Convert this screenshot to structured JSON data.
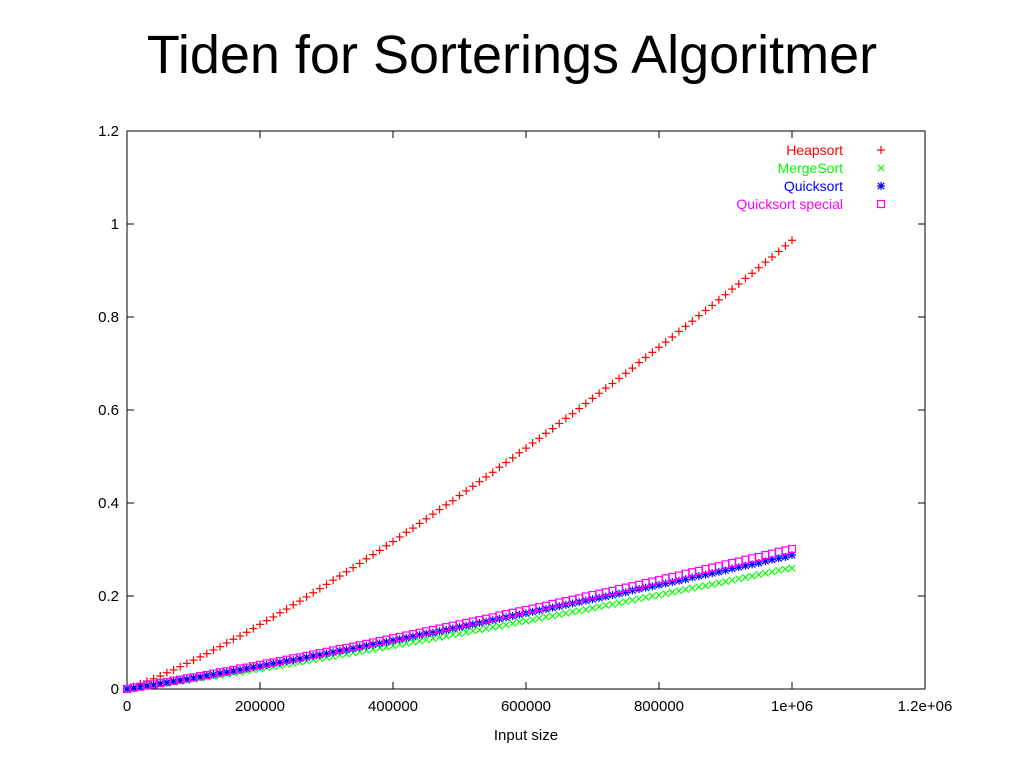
{
  "page": {
    "title": "Tiden for Sorterings Algoritmer"
  },
  "chart_data": {
    "type": "scatter",
    "title": "",
    "xlabel": "Input size",
    "ylabel": "",
    "xlim": [
      0,
      1200000
    ],
    "ylim": [
      0,
      1.2
    ],
    "x_ticks": [
      {
        "value": 0,
        "label": "0"
      },
      {
        "value": 200000,
        "label": "200000"
      },
      {
        "value": 400000,
        "label": "400000"
      },
      {
        "value": 600000,
        "label": "600000"
      },
      {
        "value": 800000,
        "label": "800000"
      },
      {
        "value": 1000000,
        "label": "1e+06"
      },
      {
        "value": 1200000,
        "label": "1.2e+06"
      }
    ],
    "y_ticks": [
      {
        "value": 0,
        "label": "0"
      },
      {
        "value": 0.2,
        "label": "0.2"
      },
      {
        "value": 0.4,
        "label": "0.4"
      },
      {
        "value": 0.6,
        "label": "0.6"
      },
      {
        "value": 0.8,
        "label": "0.8"
      },
      {
        "value": 1.0,
        "label": "1"
      },
      {
        "value": 1.2,
        "label": "1.2"
      }
    ],
    "grid": false,
    "legend": "top-right",
    "series": [
      {
        "name": "Heapsort",
        "marker": "plus",
        "color": "#ff0000",
        "x": [
          0,
          10000,
          20000,
          30000,
          40000,
          50000,
          60000,
          70000,
          80000,
          90000,
          100000,
          110000,
          120000,
          130000,
          140000,
          150000,
          160000,
          170000,
          180000,
          190000,
          200000,
          210000,
          220000,
          230000,
          240000,
          250000,
          260000,
          270000,
          280000,
          290000,
          300000,
          310000,
          320000,
          330000,
          340000,
          350000,
          360000,
          370000,
          380000,
          390000,
          400000,
          410000,
          420000,
          430000,
          440000,
          450000,
          460000,
          470000,
          480000,
          490000,
          500000,
          510000,
          520000,
          530000,
          540000,
          550000,
          560000,
          570000,
          580000,
          590000,
          600000,
          610000,
          620000,
          630000,
          640000,
          650000,
          660000,
          670000,
          680000,
          690000,
          700000,
          710000,
          720000,
          730000,
          740000,
          750000,
          760000,
          770000,
          780000,
          790000,
          800000,
          810000,
          820000,
          830000,
          840000,
          850000,
          860000,
          870000,
          880000,
          890000,
          900000,
          910000,
          920000,
          930000,
          940000,
          950000,
          960000,
          970000,
          980000,
          990000,
          1000000
        ],
        "y": [
          0.0,
          0.005,
          0.011,
          0.017,
          0.022,
          0.028,
          0.035,
          0.041,
          0.048,
          0.055,
          0.062,
          0.069,
          0.076,
          0.084,
          0.091,
          0.099,
          0.107,
          0.114,
          0.122,
          0.13,
          0.139,
          0.147,
          0.155,
          0.164,
          0.172,
          0.181,
          0.189,
          0.198,
          0.207,
          0.216,
          0.225,
          0.234,
          0.243,
          0.252,
          0.261,
          0.27,
          0.28,
          0.289,
          0.298,
          0.308,
          0.317,
          0.327,
          0.337,
          0.346,
          0.356,
          0.366,
          0.376,
          0.386,
          0.396,
          0.405,
          0.416,
          0.426,
          0.436,
          0.446,
          0.456,
          0.466,
          0.477,
          0.487,
          0.497,
          0.508,
          0.518,
          0.529,
          0.539,
          0.55,
          0.56,
          0.571,
          0.582,
          0.592,
          0.603,
          0.614,
          0.625,
          0.636,
          0.647,
          0.657,
          0.668,
          0.679,
          0.69,
          0.702,
          0.713,
          0.724,
          0.735,
          0.746,
          0.757,
          0.769,
          0.78,
          0.791,
          0.803,
          0.814,
          0.825,
          0.837,
          0.848,
          0.86,
          0.871,
          0.883,
          0.894,
          0.906,
          0.918,
          0.929,
          0.941,
          0.953,
          0.965
        ]
      },
      {
        "name": "MergeSort",
        "marker": "cross",
        "color": "#00ff00",
        "x": [
          0,
          10000,
          20000,
          30000,
          40000,
          50000,
          60000,
          70000,
          80000,
          90000,
          100000,
          110000,
          120000,
          130000,
          140000,
          150000,
          160000,
          170000,
          180000,
          190000,
          200000,
          210000,
          220000,
          230000,
          240000,
          250000,
          260000,
          270000,
          280000,
          290000,
          300000,
          310000,
          320000,
          330000,
          340000,
          350000,
          360000,
          370000,
          380000,
          390000,
          400000,
          410000,
          420000,
          430000,
          440000,
          450000,
          460000,
          470000,
          480000,
          490000,
          500000,
          510000,
          520000,
          530000,
          540000,
          550000,
          560000,
          570000,
          580000,
          590000,
          600000,
          610000,
          620000,
          630000,
          640000,
          650000,
          660000,
          670000,
          680000,
          690000,
          700000,
          710000,
          720000,
          730000,
          740000,
          750000,
          760000,
          770000,
          780000,
          790000,
          800000,
          810000,
          820000,
          830000,
          840000,
          850000,
          860000,
          870000,
          880000,
          890000,
          900000,
          910000,
          920000,
          930000,
          940000,
          950000,
          960000,
          970000,
          980000,
          990000,
          1000000
        ],
        "y": [
          0.0,
          0.002,
          0.004,
          0.006,
          0.008,
          0.01,
          0.012,
          0.014,
          0.016,
          0.018,
          0.021,
          0.023,
          0.025,
          0.027,
          0.029,
          0.032,
          0.034,
          0.036,
          0.039,
          0.041,
          0.043,
          0.046,
          0.048,
          0.05,
          0.053,
          0.055,
          0.058,
          0.06,
          0.063,
          0.065,
          0.068,
          0.07,
          0.073,
          0.075,
          0.078,
          0.08,
          0.083,
          0.085,
          0.088,
          0.09,
          0.093,
          0.096,
          0.098,
          0.101,
          0.103,
          0.106,
          0.109,
          0.111,
          0.114,
          0.117,
          0.119,
          0.122,
          0.125,
          0.127,
          0.13,
          0.133,
          0.135,
          0.138,
          0.141,
          0.144,
          0.146,
          0.149,
          0.152,
          0.155,
          0.157,
          0.16,
          0.163,
          0.166,
          0.168,
          0.171,
          0.174,
          0.177,
          0.18,
          0.182,
          0.185,
          0.188,
          0.191,
          0.194,
          0.197,
          0.2,
          0.202,
          0.205,
          0.208,
          0.211,
          0.214,
          0.217,
          0.22,
          0.222,
          0.225,
          0.228,
          0.231,
          0.234,
          0.237,
          0.24,
          0.243,
          0.246,
          0.249,
          0.252,
          0.255,
          0.258,
          0.26
        ]
      },
      {
        "name": "Quicksort",
        "marker": "star",
        "color": "#0000ff",
        "x": [
          0,
          10000,
          20000,
          30000,
          40000,
          50000,
          60000,
          70000,
          80000,
          90000,
          100000,
          110000,
          120000,
          130000,
          140000,
          150000,
          160000,
          170000,
          180000,
          190000,
          200000,
          210000,
          220000,
          230000,
          240000,
          250000,
          260000,
          270000,
          280000,
          290000,
          300000,
          310000,
          320000,
          330000,
          340000,
          350000,
          360000,
          370000,
          380000,
          390000,
          400000,
          410000,
          420000,
          430000,
          440000,
          450000,
          460000,
          470000,
          480000,
          490000,
          500000,
          510000,
          520000,
          530000,
          540000,
          550000,
          560000,
          570000,
          580000,
          590000,
          600000,
          610000,
          620000,
          630000,
          640000,
          650000,
          660000,
          670000,
          680000,
          690000,
          700000,
          710000,
          720000,
          730000,
          740000,
          750000,
          760000,
          770000,
          780000,
          790000,
          800000,
          810000,
          820000,
          830000,
          840000,
          850000,
          860000,
          870000,
          880000,
          890000,
          900000,
          910000,
          920000,
          930000,
          940000,
          950000,
          960000,
          970000,
          980000,
          990000,
          1000000
        ],
        "y": [
          0.0,
          0.002,
          0.005,
          0.007,
          0.009,
          0.012,
          0.014,
          0.017,
          0.019,
          0.021,
          0.024,
          0.026,
          0.029,
          0.031,
          0.034,
          0.036,
          0.039,
          0.041,
          0.044,
          0.047,
          0.049,
          0.052,
          0.055,
          0.057,
          0.06,
          0.062,
          0.065,
          0.068,
          0.071,
          0.073,
          0.076,
          0.079,
          0.082,
          0.084,
          0.087,
          0.09,
          0.093,
          0.096,
          0.098,
          0.101,
          0.104,
          0.107,
          0.11,
          0.113,
          0.116,
          0.119,
          0.121,
          0.124,
          0.127,
          0.13,
          0.133,
          0.136,
          0.139,
          0.142,
          0.145,
          0.148,
          0.151,
          0.154,
          0.157,
          0.16,
          0.163,
          0.166,
          0.169,
          0.172,
          0.175,
          0.178,
          0.181,
          0.184,
          0.187,
          0.19,
          0.193,
          0.196,
          0.199,
          0.202,
          0.205,
          0.208,
          0.212,
          0.215,
          0.218,
          0.221,
          0.224,
          0.227,
          0.23,
          0.233,
          0.236,
          0.24,
          0.243,
          0.246,
          0.249,
          0.252,
          0.255,
          0.259,
          0.262,
          0.265,
          0.268,
          0.271,
          0.275,
          0.278,
          0.281,
          0.284,
          0.288
        ]
      },
      {
        "name": "Quicksort special",
        "marker": "square",
        "color": "#ff00ff",
        "x": [
          0,
          10000,
          20000,
          30000,
          40000,
          50000,
          60000,
          70000,
          80000,
          90000,
          100000,
          110000,
          120000,
          130000,
          140000,
          150000,
          160000,
          170000,
          180000,
          190000,
          200000,
          210000,
          220000,
          230000,
          240000,
          250000,
          260000,
          270000,
          280000,
          290000,
          300000,
          310000,
          320000,
          330000,
          340000,
          350000,
          360000,
          370000,
          380000,
          390000,
          400000,
          410000,
          420000,
          430000,
          440000,
          450000,
          460000,
          470000,
          480000,
          490000,
          500000,
          510000,
          520000,
          530000,
          540000,
          550000,
          560000,
          570000,
          580000,
          590000,
          600000,
          610000,
          620000,
          630000,
          640000,
          650000,
          660000,
          670000,
          680000,
          690000,
          700000,
          710000,
          720000,
          730000,
          740000,
          750000,
          760000,
          770000,
          780000,
          790000,
          800000,
          810000,
          820000,
          830000,
          840000,
          850000,
          860000,
          870000,
          880000,
          890000,
          900000,
          910000,
          920000,
          930000,
          940000,
          950000,
          960000,
          970000,
          980000,
          990000,
          1000000
        ],
        "y": [
          0.0,
          0.003,
          0.005,
          0.008,
          0.01,
          0.013,
          0.015,
          0.018,
          0.02,
          0.023,
          0.025,
          0.028,
          0.03,
          0.033,
          0.036,
          0.038,
          0.041,
          0.044,
          0.046,
          0.049,
          0.052,
          0.055,
          0.057,
          0.06,
          0.063,
          0.066,
          0.068,
          0.071,
          0.074,
          0.077,
          0.08,
          0.083,
          0.086,
          0.088,
          0.091,
          0.094,
          0.097,
          0.1,
          0.103,
          0.106,
          0.109,
          0.112,
          0.115,
          0.118,
          0.121,
          0.124,
          0.127,
          0.13,
          0.133,
          0.136,
          0.139,
          0.142,
          0.145,
          0.148,
          0.151,
          0.154,
          0.158,
          0.161,
          0.164,
          0.167,
          0.17,
          0.173,
          0.176,
          0.179,
          0.183,
          0.186,
          0.189,
          0.192,
          0.195,
          0.199,
          0.202,
          0.205,
          0.208,
          0.211,
          0.215,
          0.218,
          0.221,
          0.224,
          0.228,
          0.231,
          0.234,
          0.238,
          0.241,
          0.244,
          0.248,
          0.251,
          0.254,
          0.258,
          0.261,
          0.264,
          0.268,
          0.271,
          0.274,
          0.278,
          0.281,
          0.284,
          0.288,
          0.291,
          0.295,
          0.298,
          0.301
        ]
      }
    ]
  }
}
